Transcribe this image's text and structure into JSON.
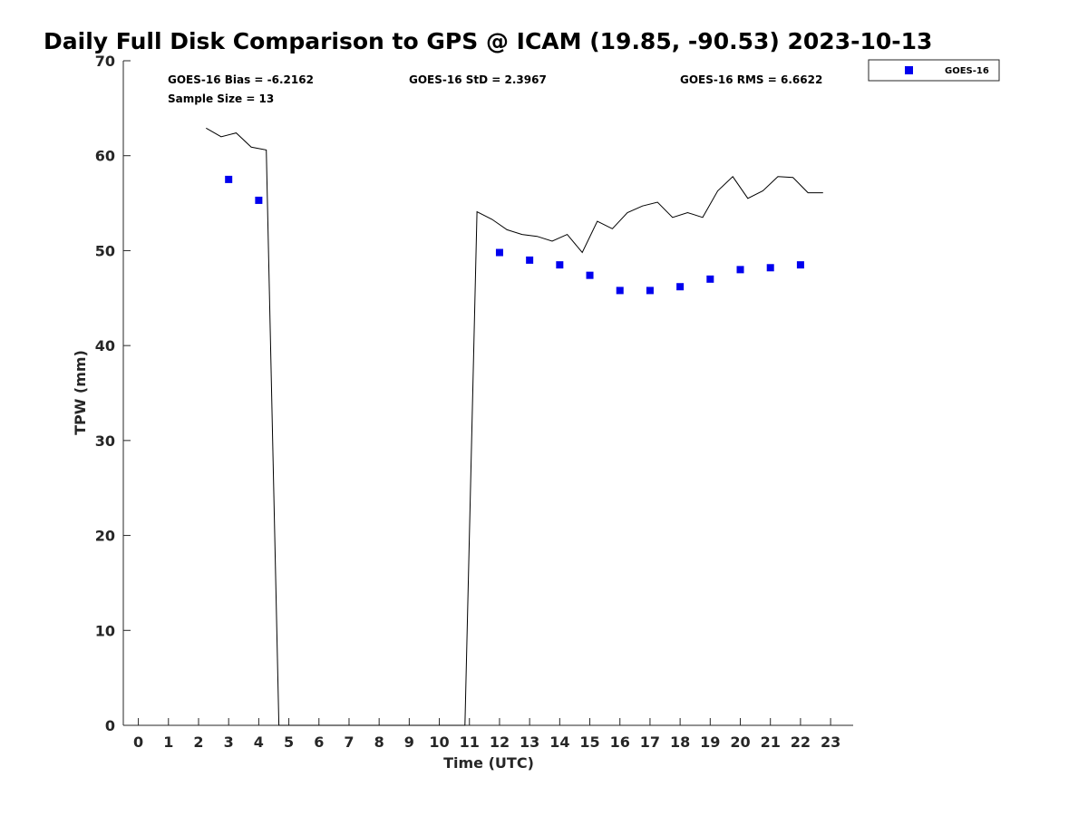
{
  "chart_data": {
    "type": "scatter",
    "title": "Daily Full Disk Comparison to GPS @ ICAM (19.85, -90.53) 2023-10-13",
    "xlabel": "Time (UTC)",
    "ylabel": "TPW (mm)",
    "xlim": [
      -0.5,
      23.75
    ],
    "ylim": [
      0,
      70
    ],
    "xticks": [
      0,
      1,
      2,
      3,
      4,
      5,
      6,
      7,
      8,
      9,
      10,
      11,
      12,
      13,
      14,
      15,
      16,
      17,
      18,
      19,
      20,
      21,
      22,
      23
    ],
    "yticks": [
      0,
      10,
      20,
      30,
      40,
      50,
      60,
      70
    ],
    "grid": false,
    "legend_position": "outside top-right",
    "series": [
      {
        "name": "GOES-16",
        "kind": "scatter",
        "marker": "square",
        "color": "#0000ee",
        "x": [
          3,
          4,
          12,
          13,
          14,
          15,
          16,
          17,
          18,
          19,
          20,
          21,
          22
        ],
        "y": [
          57.5,
          55.3,
          49.8,
          49.0,
          48.5,
          47.4,
          45.8,
          45.8,
          46.2,
          47.0,
          48.0,
          48.2,
          48.5
        ]
      },
      {
        "kind": "line",
        "color": "#000000",
        "x": [
          2.25,
          2.75,
          3.25,
          3.75,
          4.25,
          4.67,
          10.85,
          11.25,
          11.75,
          12.25,
          12.75,
          13.25,
          13.75,
          14.25,
          14.75,
          15.25,
          15.75,
          16.25,
          16.75,
          17.25,
          17.75,
          18.25,
          18.75,
          19.25,
          19.75,
          20.25,
          20.75,
          21.25,
          21.75,
          22.25,
          22.75
        ],
        "y": [
          62.9,
          62.0,
          62.4,
          60.9,
          60.6,
          0.0,
          0.0,
          54.1,
          53.3,
          52.2,
          51.7,
          51.5,
          51.0,
          51.7,
          49.8,
          53.1,
          52.3,
          54.0,
          54.7,
          55.1,
          53.5,
          54.0,
          53.5,
          56.3,
          57.8,
          55.5,
          56.3,
          57.8,
          57.7,
          56.1,
          56.1
        ]
      }
    ],
    "annotations": {
      "bias": "GOES-16 Bias = -6.2162",
      "std": "GOES-16 StD = 2.3967",
      "rms": "GOES-16 RMS = 6.6622",
      "sample": "Sample Size = 13"
    },
    "legend": [
      "GOES-16"
    ]
  }
}
